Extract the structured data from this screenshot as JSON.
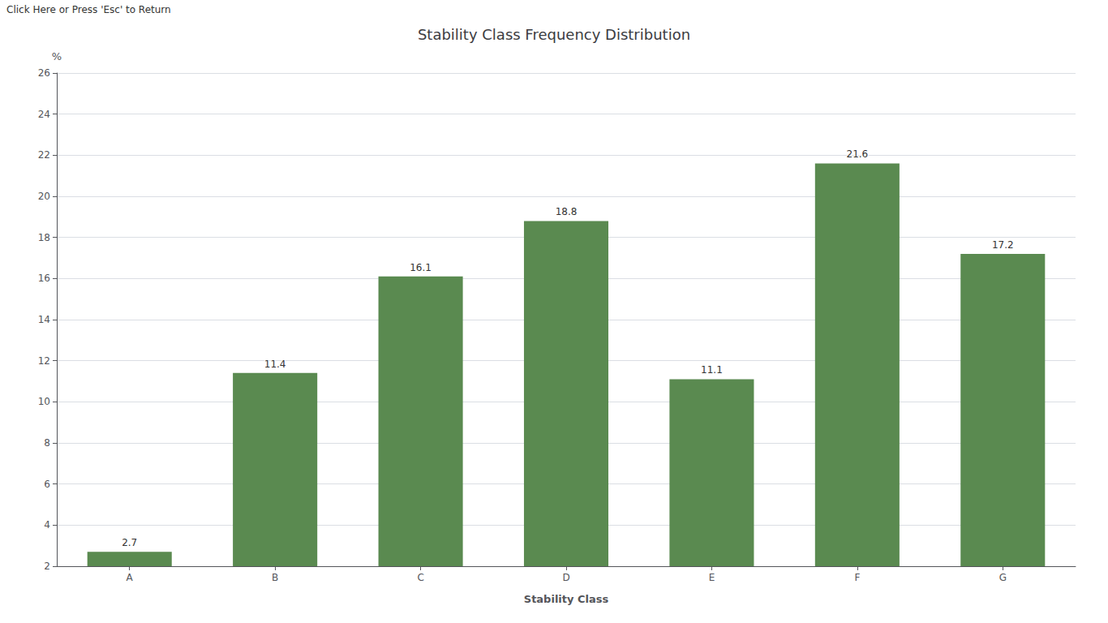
{
  "chart_data": {
    "type": "bar",
    "title": "Stability Class Frequency Distribution",
    "annotations": [
      "Click Here or Press 'Esc' to Return"
    ],
    "xlabel": "Stability Class",
    "ylabel": "%",
    "categories": [
      "A",
      "B",
      "C",
      "D",
      "E",
      "F",
      "G"
    ],
    "values": [
      2.7,
      11.4,
      16.1,
      18.8,
      11.1,
      21.6,
      17.2
    ],
    "color": "#5a8a50",
    "ylim": [
      2,
      26
    ],
    "yticks": [
      2,
      4,
      6,
      8,
      10,
      12,
      14,
      16,
      18,
      20,
      22,
      24,
      26
    ],
    "grid": true,
    "data_labels": true
  }
}
